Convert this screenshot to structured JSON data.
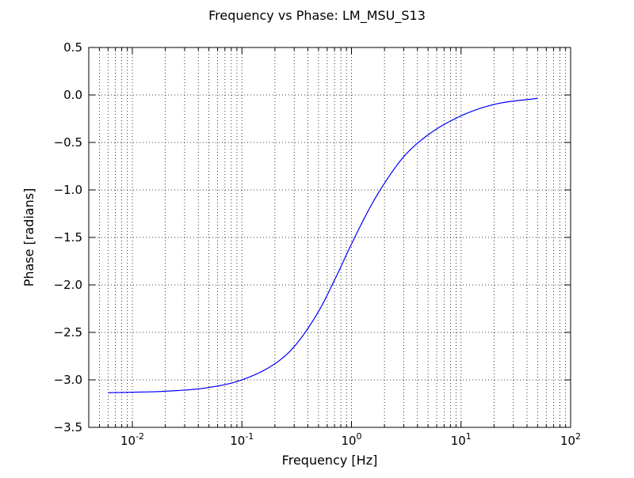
{
  "chart_data": {
    "type": "line",
    "title": "Frequency vs Phase: LM_MSU_S13",
    "xlabel": "Frequency [Hz]",
    "ylabel": "Phase [radians]",
    "xscale": "log",
    "xlim": [
      0.004,
      100
    ],
    "ylim": [
      -3.5,
      0.5
    ],
    "grid": true,
    "x_tick_labels": [
      {
        "value": 0.01,
        "base": "10",
        "exp": "-2"
      },
      {
        "value": 0.1,
        "base": "10",
        "exp": "-1"
      },
      {
        "value": 1,
        "base": "10",
        "exp": "0"
      },
      {
        "value": 10,
        "base": "10",
        "exp": "1"
      },
      {
        "value": 100,
        "base": "10",
        "exp": "2"
      }
    ],
    "y_tick_labels": [
      "0.5",
      "0.0",
      "−0.5",
      "−1.0",
      "−1.5",
      "−2.0",
      "−2.5",
      "−3.0",
      "−3.5"
    ],
    "y_tick_values": [
      0.5,
      0.0,
      -0.5,
      -1.0,
      -1.5,
      -2.0,
      -2.5,
      -3.0,
      -3.5
    ],
    "series": [
      {
        "color": "#0000ff",
        "x": [
          0.006,
          0.01,
          0.02,
          0.05,
          0.1,
          0.2,
          0.3,
          0.5,
          0.7,
          1.0,
          1.5,
          2.0,
          3.0,
          5.0,
          10,
          20,
          50
        ],
        "y": [
          -3.135,
          -3.13,
          -3.12,
          -3.08,
          -3.0,
          -2.83,
          -2.65,
          -2.28,
          -1.95,
          -1.57,
          -1.17,
          -0.93,
          -0.65,
          -0.42,
          -0.22,
          -0.1,
          -0.035
        ]
      }
    ]
  }
}
